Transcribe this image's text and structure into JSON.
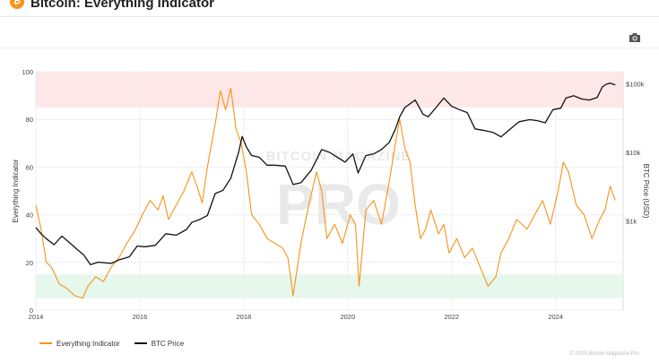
{
  "header": {
    "logo_glyph": "₿",
    "title": "Bitcoin: Everything Indicator"
  },
  "toolbar": {
    "camera_icon": "camera-icon"
  },
  "colors": {
    "indicator": "#f7931a",
    "price": "#111111",
    "overbought_band": "#fde3e3",
    "oversold_band": "#e2f6e8",
    "watermark": "#e9e9e9"
  },
  "watermark": {
    "top": "BITCOIN MAGAZINE",
    "main": "PRO"
  },
  "chart_data": {
    "type": "line",
    "title": "Bitcoin: Everything Indicator",
    "xlabel": "",
    "ylabel_left": "Everything Indicator",
    "ylabel_right": "BTC Price (USD)",
    "x_range": [
      2014.0,
      2025.3
    ],
    "x_ticks": [
      "2014",
      "2016",
      "2018",
      "2020",
      "2022",
      "2024"
    ],
    "y_left_range": [
      0,
      100
    ],
    "y_left_ticks": [
      "0",
      "20",
      "40",
      "60",
      "80",
      "100"
    ],
    "y_right_scale": "log",
    "y_right_range": [
      50,
      150000
    ],
    "y_right_ticks": [
      {
        "label": "$1k",
        "value": 1000
      },
      {
        "label": "$10k",
        "value": 10000
      },
      {
        "label": "$100k",
        "value": 100000
      }
    ],
    "bands": [
      {
        "name": "overbought",
        "from": 85,
        "to": 100
      },
      {
        "name": "oversold",
        "from": 5,
        "to": 15
      }
    ],
    "grid": true,
    "legend_position": "bottom-left",
    "series": [
      {
        "name": "Everything Indicator",
        "axis": "left",
        "x": [
          2014.0,
          2014.1,
          2014.2,
          2014.3,
          2014.45,
          2014.6,
          2014.75,
          2014.9,
          2015.0,
          2015.15,
          2015.3,
          2015.45,
          2015.6,
          2015.75,
          2015.9,
          2016.05,
          2016.2,
          2016.35,
          2016.45,
          2016.55,
          2016.7,
          2016.85,
          2017.0,
          2017.1,
          2017.2,
          2017.3,
          2017.45,
          2017.55,
          2017.65,
          2017.75,
          2017.85,
          2017.95,
          2018.05,
          2018.15,
          2018.3,
          2018.45,
          2018.6,
          2018.75,
          2018.85,
          2018.95,
          2019.1,
          2019.25,
          2019.4,
          2019.5,
          2019.6,
          2019.75,
          2019.9,
          2020.05,
          2020.15,
          2020.22,
          2020.35,
          2020.5,
          2020.65,
          2020.8,
          2020.92,
          2021.0,
          2021.1,
          2021.2,
          2021.3,
          2021.4,
          2021.5,
          2021.6,
          2021.75,
          2021.85,
          2021.95,
          2022.1,
          2022.25,
          2022.4,
          2022.55,
          2022.7,
          2022.85,
          2022.95,
          2023.1,
          2023.25,
          2023.45,
          2023.6,
          2023.75,
          2023.9,
          2024.05,
          2024.15,
          2024.25,
          2024.4,
          2024.55,
          2024.7,
          2024.85,
          2024.95,
          2025.05,
          2025.15
        ],
        "values": [
          44,
          34,
          20,
          18,
          11,
          9,
          6,
          5,
          10,
          14,
          12,
          18,
          22,
          28,
          33,
          40,
          46,
          42,
          48,
          38,
          44,
          50,
          58,
          52,
          45,
          60,
          78,
          92,
          84,
          93,
          76,
          70,
          58,
          40,
          36,
          30,
          28,
          26,
          22,
          6,
          28,
          44,
          58,
          50,
          30,
          36,
          28,
          40,
          36,
          10,
          42,
          46,
          36,
          54,
          70,
          80,
          68,
          62,
          44,
          30,
          34,
          42,
          32,
          36,
          24,
          30,
          22,
          26,
          18,
          10,
          14,
          24,
          30,
          38,
          34,
          40,
          46,
          36,
          50,
          62,
          58,
          44,
          40,
          30,
          38,
          42,
          52,
          46
        ]
      },
      {
        "name": "BTC Price",
        "axis": "right",
        "x": [
          2014.0,
          2014.1,
          2014.2,
          2014.35,
          2014.5,
          2014.65,
          2014.8,
          2014.92,
          2015.05,
          2015.2,
          2015.45,
          2015.6,
          2015.8,
          2015.95,
          2016.1,
          2016.3,
          2016.5,
          2016.7,
          2016.9,
          2017.0,
          2017.15,
          2017.3,
          2017.45,
          2017.6,
          2017.75,
          2017.9,
          2017.97,
          2018.05,
          2018.15,
          2018.3,
          2018.45,
          2018.6,
          2018.8,
          2018.95,
          2019.1,
          2019.3,
          2019.5,
          2019.65,
          2019.8,
          2019.95,
          2020.1,
          2020.2,
          2020.35,
          2020.5,
          2020.65,
          2020.8,
          2020.92,
          2021.0,
          2021.1,
          2021.3,
          2021.45,
          2021.55,
          2021.7,
          2021.85,
          2022.0,
          2022.15,
          2022.3,
          2022.45,
          2022.6,
          2022.8,
          2022.95,
          2023.1,
          2023.3,
          2023.5,
          2023.65,
          2023.8,
          2023.95,
          2024.1,
          2024.2,
          2024.35,
          2024.5,
          2024.65,
          2024.8,
          2024.9,
          2024.97,
          2025.05,
          2025.15
        ],
        "values": [
          800,
          650,
          550,
          450,
          600,
          480,
          380,
          320,
          230,
          250,
          240,
          270,
          300,
          430,
          420,
          440,
          650,
          620,
          750,
          950,
          1050,
          1200,
          2500,
          2800,
          4200,
          10000,
          17000,
          12000,
          9000,
          8500,
          6500,
          6500,
          6300,
          3400,
          3600,
          5500,
          11000,
          10000,
          8500,
          7200,
          9500,
          5000,
          9000,
          9500,
          11000,
          14000,
          22000,
          33000,
          45000,
          58000,
          36000,
          33000,
          45000,
          62000,
          47000,
          42000,
          38000,
          22000,
          21000,
          19500,
          16800,
          21000,
          28000,
          30000,
          29000,
          27000,
          42000,
          44000,
          62000,
          67000,
          60000,
          58000,
          63000,
          90000,
          98000,
          102000,
          96000
        ]
      }
    ]
  },
  "legend": {
    "items": [
      {
        "label": "Everything Indicator"
      },
      {
        "label": "BTC Price"
      }
    ]
  },
  "footer": {
    "note": "© 2025 Bitcoin Magazine Pro"
  }
}
